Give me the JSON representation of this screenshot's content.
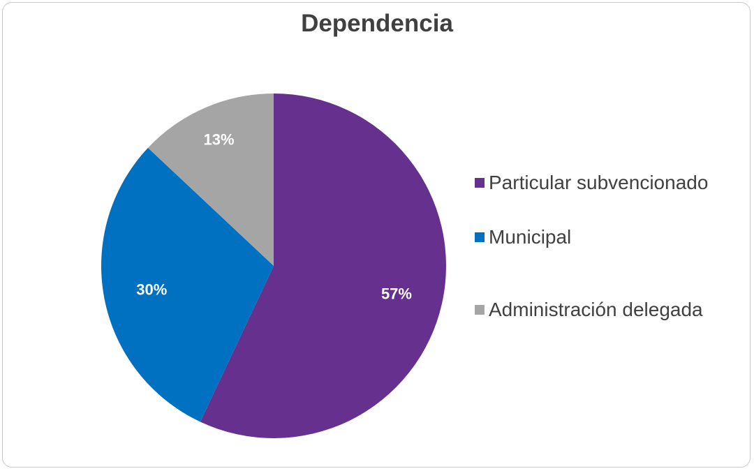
{
  "chart_data": {
    "type": "pie",
    "title": "Dependencia",
    "categories": [
      "Particular subvencionado",
      "Municipal",
      "Administración delegada"
    ],
    "values": [
      57,
      30,
      13
    ],
    "labels": [
      "57%",
      "30%",
      "13%"
    ],
    "colors": [
      "#66308E",
      "#0070C0",
      "#A5A5A5"
    ],
    "legend_position": "right"
  }
}
